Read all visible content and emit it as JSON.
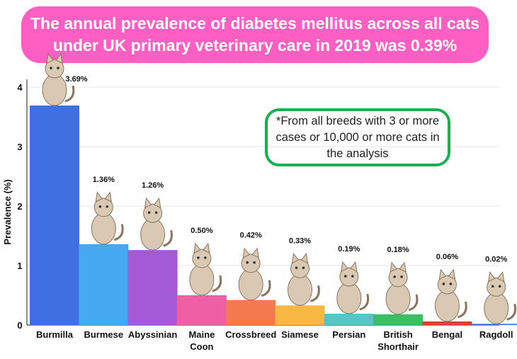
{
  "title": {
    "line1": "The annual prevalence of diabetes mellitus across all cats",
    "line2": "under UK primary veterinary care in 2019 was 0.39%"
  },
  "note": "*From all breeds with 3 or more cases or 10,000 or more cats in the analysis",
  "chart_data": {
    "type": "bar",
    "categories": [
      "Burmilla",
      "Burmese",
      "Abyssinian",
      "Maine Coon",
      "Crossbreed",
      "Siamese",
      "Persian",
      "British Shorthair",
      "Bengal",
      "Ragdoll"
    ],
    "category_lines": [
      [
        "Burmilla"
      ],
      [
        "Burmese"
      ],
      [
        "Abyssinian"
      ],
      [
        "Maine",
        "Coon"
      ],
      [
        "Crossbreed"
      ],
      [
        "Siamese"
      ],
      [
        "Persian"
      ],
      [
        "British",
        "Shorthair"
      ],
      [
        "Bengal"
      ],
      [
        "Ragdoll"
      ]
    ],
    "values": [
      3.69,
      1.36,
      1.26,
      0.5,
      0.42,
      0.33,
      0.19,
      0.18,
      0.06,
      0.02
    ],
    "data_labels": [
      "3.69%",
      "1.36%",
      "1.26%",
      "0.50%",
      "0.42%",
      "0.33%",
      "0.19%",
      "0.18%",
      "0.06%",
      "0.02%"
    ],
    "colors": [
      "#3f6fe0",
      "#45a8f0",
      "#a45ad6",
      "#ee5fa3",
      "#f37a4f",
      "#f7b844",
      "#5ac3c8",
      "#3cbf63",
      "#e83a3a",
      "#3f6fe0"
    ],
    "ylabel": "Prevalence (%)",
    "yticks": [
      0,
      1,
      2,
      3,
      4
    ],
    "ylim": [
      0,
      4.3
    ],
    "grid": true
  }
}
